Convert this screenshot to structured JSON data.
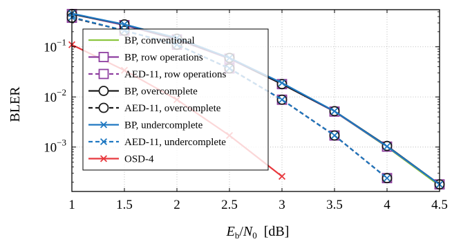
{
  "chart_data": {
    "type": "line",
    "xlabel": "Eb/N0 [dB]",
    "ylabel": "BLER",
    "x_ticks": [
      "1",
      "1.5",
      "2",
      "2.5",
      "3",
      "3.5",
      "4",
      "4.5"
    ],
    "y_ticks": [
      "10",
      "10",
      "10"
    ],
    "y_tick_exponents": [
      "−1",
      "−2",
      "−3"
    ],
    "xlim": [
      1,
      4.5
    ],
    "ylim": [
      0.00013,
      0.55
    ],
    "y_scale": "log",
    "grid": "dotted",
    "legend_position": "top-left",
    "series": [
      {
        "name": "BP, conventional",
        "color": "#8cc63f",
        "dash": "solid",
        "marker": "none",
        "x": [
          1,
          1.5,
          2,
          2.5,
          3,
          3.5,
          4,
          4.5
        ],
        "y": [
          0.45,
          0.27,
          0.14,
          0.058,
          0.018,
          0.0051,
          0.001,
          0.00017
        ]
      },
      {
        "name": "BP, row operations",
        "color": "#8e3fa0",
        "dash": "solid",
        "marker": "square",
        "x": [
          1,
          1.5,
          2,
          2.5,
          3,
          3.5,
          4,
          4.5
        ],
        "y": [
          0.45,
          0.27,
          0.14,
          0.058,
          0.018,
          0.0051,
          0.00102,
          0.00018
        ]
      },
      {
        "name": "AED-11, row operations",
        "color": "#8e3fa0",
        "dash": "dashed",
        "marker": "square",
        "x": [
          1,
          1.5,
          2,
          2.5,
          3,
          3.5,
          4
        ],
        "y": [
          0.38,
          0.21,
          0.11,
          0.037,
          0.0088,
          0.0017,
          0.00024
        ]
      },
      {
        "name": "BP, overcomplete",
        "color": "#1a1a1a",
        "dash": "solid",
        "marker": "circle",
        "x": [
          1,
          1.5,
          2,
          2.5,
          3,
          3.5,
          4,
          4.5
        ],
        "y": [
          0.45,
          0.28,
          0.145,
          0.06,
          0.018,
          0.0052,
          0.00105,
          0.00018
        ]
      },
      {
        "name": "AED-11, overcomplete",
        "color": "#1a1a1a",
        "dash": "dashed",
        "marker": "circle",
        "x": [
          1,
          1.5,
          2,
          2.5,
          3,
          3.5,
          4
        ],
        "y": [
          0.38,
          0.21,
          0.11,
          0.037,
          0.0088,
          0.0017,
          0.00024
        ]
      },
      {
        "name": "BP, undercomplete",
        "color": "#1f78c1",
        "dash": "solid",
        "marker": "x",
        "x": [
          1,
          1.5,
          2,
          2.5,
          3,
          3.5,
          4,
          4.5
        ],
        "y": [
          0.46,
          0.28,
          0.15,
          0.06,
          0.019,
          0.0052,
          0.00103,
          0.00018
        ]
      },
      {
        "name": "AED-11, undercomplete",
        "color": "#1f78c1",
        "dash": "dashed",
        "marker": "x",
        "x": [
          1,
          1.5,
          2,
          2.5,
          3,
          3.5,
          4
        ],
        "y": [
          0.39,
          0.21,
          0.11,
          0.037,
          0.0088,
          0.0017,
          0.00024
        ]
      },
      {
        "name": "OSD-4",
        "color": "#e8383d",
        "dash": "solid",
        "marker": "x",
        "x": [
          1,
          1.5,
          2,
          2.5,
          3
        ],
        "y": [
          0.11,
          0.034,
          0.0088,
          0.0017,
          0.00026
        ]
      }
    ]
  }
}
